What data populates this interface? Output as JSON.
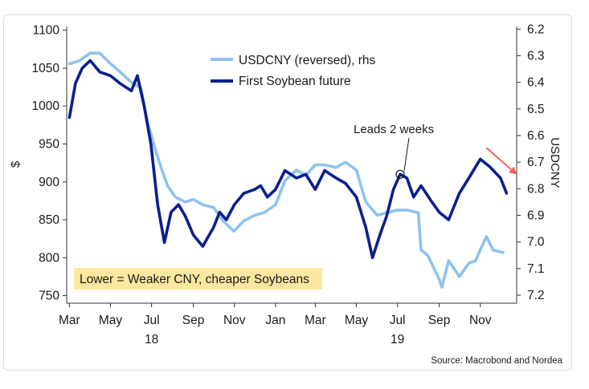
{
  "chart_data": {
    "type": "line",
    "title": "",
    "left_axis": {
      "label": "$",
      "ylim": [
        740,
        1105
      ],
      "ticks": [
        750,
        800,
        850,
        900,
        950,
        1000,
        1050,
        1100
      ]
    },
    "right_axis": {
      "label": "USDCNY",
      "reversed": true,
      "ylim": [
        7.23,
        6.19
      ],
      "ticks": [
        6.2,
        6.3,
        6.4,
        6.5,
        6.6,
        6.7,
        6.8,
        6.9,
        7.0,
        7.1,
        7.2
      ]
    },
    "x_axis": {
      "range": [
        "2018-02-25",
        "2019-12-25"
      ],
      "month_labels": [
        {
          "label": "Mar",
          "date": "2018-03-01"
        },
        {
          "label": "May",
          "date": "2018-05-01"
        },
        {
          "label": "Jul",
          "date": "2018-07-01"
        },
        {
          "label": "Sep",
          "date": "2018-09-01"
        },
        {
          "label": "Nov",
          "date": "2018-11-01"
        },
        {
          "label": "Jan",
          "date": "2019-01-01"
        },
        {
          "label": "Mar",
          "date": "2019-03-01"
        },
        {
          "label": "May",
          "date": "2019-05-01"
        },
        {
          "label": "Jul",
          "date": "2019-07-01"
        },
        {
          "label": "Sep",
          "date": "2019-09-01"
        },
        {
          "label": "Nov",
          "date": "2019-11-01"
        }
      ],
      "year_labels": [
        {
          "label": "18",
          "date": "2018-07-01"
        },
        {
          "label": "19",
          "date": "2019-07-01"
        }
      ]
    },
    "series": [
      {
        "name": "USDCNY (reversed), rhs",
        "axis": "right",
        "color": "#8ec3f0",
        "points": [
          [
            "2018-03-01",
            6.33
          ],
          [
            "2018-03-15",
            6.32
          ],
          [
            "2018-04-01",
            6.29
          ],
          [
            "2018-04-15",
            6.29
          ],
          [
            "2018-05-01",
            6.33
          ],
          [
            "2018-05-15",
            6.36
          ],
          [
            "2018-06-01",
            6.4
          ],
          [
            "2018-06-15",
            6.42
          ],
          [
            "2018-06-25",
            6.55
          ],
          [
            "2018-07-05",
            6.64
          ],
          [
            "2018-07-15",
            6.72
          ],
          [
            "2018-07-25",
            6.79
          ],
          [
            "2018-08-05",
            6.83
          ],
          [
            "2018-08-20",
            6.85
          ],
          [
            "2018-09-01",
            6.84
          ],
          [
            "2018-09-15",
            6.86
          ],
          [
            "2018-10-01",
            6.87
          ],
          [
            "2018-10-15",
            6.92
          ],
          [
            "2018-10-31",
            6.96
          ],
          [
            "2018-11-15",
            6.92
          ],
          [
            "2018-12-01",
            6.9
          ],
          [
            "2018-12-15",
            6.89
          ],
          [
            "2019-01-01",
            6.86
          ],
          [
            "2019-01-15",
            6.77
          ],
          [
            "2019-02-01",
            6.73
          ],
          [
            "2019-02-15",
            6.75
          ],
          [
            "2019-03-01",
            6.71
          ],
          [
            "2019-03-15",
            6.71
          ],
          [
            "2019-04-01",
            6.72
          ],
          [
            "2019-04-15",
            6.7
          ],
          [
            "2019-05-01",
            6.73
          ],
          [
            "2019-05-15",
            6.85
          ],
          [
            "2019-06-01",
            6.9
          ],
          [
            "2019-06-15",
            6.89
          ],
          [
            "2019-07-01",
            6.88
          ],
          [
            "2019-07-15",
            6.88
          ],
          [
            "2019-08-01",
            6.89
          ],
          [
            "2019-08-05",
            7.03
          ],
          [
            "2019-08-15",
            7.05
          ],
          [
            "2019-09-01",
            7.14
          ],
          [
            "2019-09-05",
            7.17
          ],
          [
            "2019-09-15",
            7.07
          ],
          [
            "2019-10-01",
            7.13
          ],
          [
            "2019-10-15",
            7.08
          ],
          [
            "2019-10-25",
            7.07
          ],
          [
            "2019-11-01",
            7.03
          ],
          [
            "2019-11-10",
            6.98
          ],
          [
            "2019-11-20",
            7.03
          ],
          [
            "2019-12-05",
            7.04
          ]
        ]
      },
      {
        "name": "First Soybean future",
        "axis": "left",
        "color": "#0a1f8f",
        "points": [
          [
            "2018-03-01",
            985
          ],
          [
            "2018-03-10",
            1030
          ],
          [
            "2018-03-20",
            1050
          ],
          [
            "2018-04-01",
            1060
          ],
          [
            "2018-04-15",
            1045
          ],
          [
            "2018-05-01",
            1040
          ],
          [
            "2018-05-15",
            1030
          ],
          [
            "2018-06-01",
            1020
          ],
          [
            "2018-06-10",
            1040
          ],
          [
            "2018-06-20",
            1000
          ],
          [
            "2018-06-30",
            950
          ],
          [
            "2018-07-10",
            870
          ],
          [
            "2018-07-20",
            820
          ],
          [
            "2018-07-30",
            860
          ],
          [
            "2018-08-10",
            870
          ],
          [
            "2018-08-20",
            855
          ],
          [
            "2018-09-01",
            830
          ],
          [
            "2018-09-15",
            815
          ],
          [
            "2018-10-01",
            840
          ],
          [
            "2018-10-10",
            860
          ],
          [
            "2018-10-20",
            850
          ],
          [
            "2018-11-01",
            870
          ],
          [
            "2018-11-15",
            885
          ],
          [
            "2018-12-01",
            890
          ],
          [
            "2018-12-10",
            895
          ],
          [
            "2018-12-20",
            880
          ],
          [
            "2019-01-01",
            890
          ],
          [
            "2019-01-15",
            915
          ],
          [
            "2019-02-01",
            905
          ],
          [
            "2019-02-15",
            910
          ],
          [
            "2019-03-01",
            890
          ],
          [
            "2019-03-15",
            915
          ],
          [
            "2019-04-01",
            905
          ],
          [
            "2019-04-15",
            898
          ],
          [
            "2019-05-01",
            880
          ],
          [
            "2019-05-15",
            840
          ],
          [
            "2019-05-25",
            800
          ],
          [
            "2019-06-05",
            830
          ],
          [
            "2019-06-15",
            855
          ],
          [
            "2019-06-25",
            890
          ],
          [
            "2019-07-05",
            910
          ],
          [
            "2019-07-15",
            905
          ],
          [
            "2019-07-25",
            880
          ],
          [
            "2019-08-05",
            895
          ],
          [
            "2019-08-20",
            875
          ],
          [
            "2019-09-01",
            860
          ],
          [
            "2019-09-15",
            850
          ],
          [
            "2019-10-01",
            885
          ],
          [
            "2019-10-15",
            905
          ],
          [
            "2019-11-01",
            930
          ],
          [
            "2019-11-15",
            920
          ],
          [
            "2019-12-01",
            905
          ],
          [
            "2019-12-10",
            885
          ]
        ]
      }
    ],
    "legend": {
      "placement": "top-center"
    },
    "annotations": {
      "leads_label": "Leads 2 weeks",
      "leads_point": [
        "2019-07-05",
        910
      ],
      "caption": "Lower = Weaker CNY, cheaper Soybeans",
      "arrow_from": [
        "2019-11-10",
        945
      ],
      "arrow_to": [
        "2019-12-25",
        910
      ]
    },
    "colors": {
      "soybean": "#0a1f8f",
      "usdcny": "#8ec3f0",
      "caption_box": "#fde7a1",
      "arrow": "#f2605b"
    }
  },
  "source": "Source: Macrobond and Nordea"
}
